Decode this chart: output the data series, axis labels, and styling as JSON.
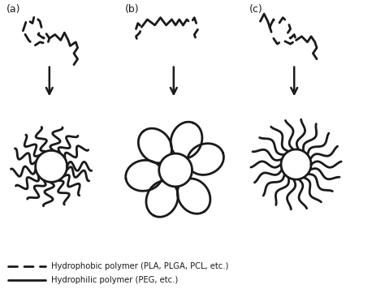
{
  "fig_width": 4.74,
  "fig_height": 3.56,
  "dpi": 100,
  "bg_color": "#ffffff",
  "line_color": "#1a1a1a",
  "lw_solid": 2.0,
  "lw_dashed": 2.0,
  "labels": [
    "(a)",
    "(b)",
    "(c)"
  ],
  "legend_text1": "Hydrophobic polymer (PLA, PLGA, PCL, etc.)",
  "legend_text2": "Hydrophilic polymer (PEG, etc.)"
}
